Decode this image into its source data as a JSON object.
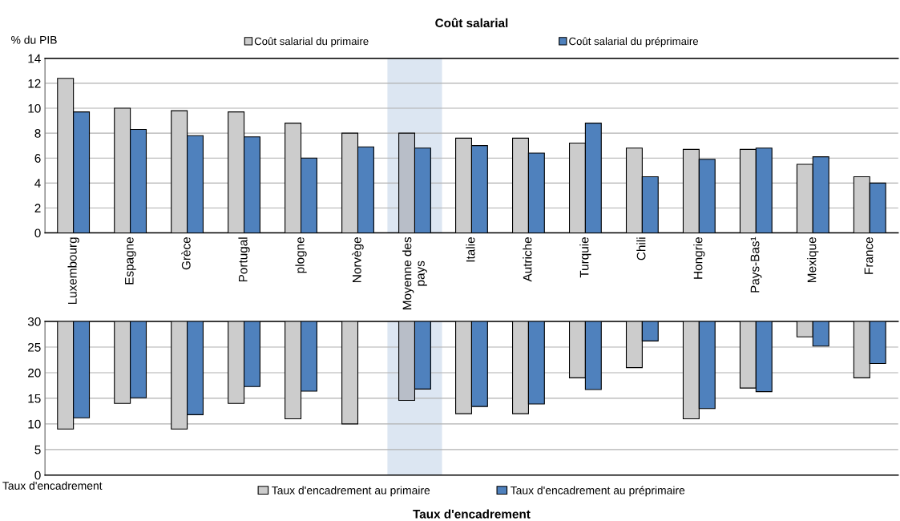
{
  "chart_data": [
    {
      "type": "bar",
      "title": "Coût salarial",
      "ylabel": "% du PIB",
      "legend": "top",
      "grid": "y",
      "categories": [
        "Luxembourg",
        "Espagne",
        "Grèce",
        "Portugal",
        "plogne",
        "Norvège",
        "Moyenne des pays",
        "Italie",
        "Autriche",
        "Turquie",
        "Chili",
        "Hongrie",
        "Pays-Bas¹",
        "Mexique",
        "France"
      ],
      "ylim": [
        0,
        14
      ],
      "yticks": [
        0,
        2,
        4,
        6,
        8,
        10,
        12,
        14
      ],
      "bands": [
        {
          "axis": "x",
          "from": "Moyenne des pays",
          "to": "Moyenne des pays",
          "color": "#dce6f2"
        }
      ],
      "series": [
        {
          "name": "Coût salarial du primaire",
          "color": "#cccccc",
          "colors": [
            "#cccccc",
            "#cccccc",
            "#cccccc",
            "#cccccc",
            "#cccccc",
            "#cccccc",
            "#b8bec8",
            "#cccccc",
            "#cccccc",
            "#cccccc",
            "#cccccc",
            "#cccccc",
            "#cccccc",
            "#cccccc",
            "#cccccc"
          ],
          "values": [
            12.4,
            10.0,
            9.8,
            9.7,
            8.8,
            8.0,
            8.0,
            7.6,
            7.6,
            7.2,
            6.8,
            6.7,
            6.7,
            5.5,
            4.5
          ]
        },
        {
          "name": "Coût salarial du préprimaire",
          "color": "#4f81bd",
          "values": [
            9.7,
            8.3,
            7.8,
            7.7,
            6.0,
            6.9,
            6.8,
            7.0,
            6.4,
            8.8,
            4.5,
            5.9,
            6.8,
            6.1,
            4.0
          ]
        }
      ]
    },
    {
      "type": "bar",
      "title": "Taux d'encadrement",
      "ylabel": "Taux d'encadrement",
      "legend": "bottom",
      "grid": "y",
      "tick_labels": "y",
      "categories": [
        "Luxembourg",
        "Espagne",
        "Grèce",
        "Portugal",
        "plogne",
        "Norvège",
        "Moyenne des pays",
        "Italie",
        "Autriche",
        "Turquie",
        "Chili",
        "Hongrie",
        "Pays-Bas¹",
        "Mexique",
        "France"
      ],
      "ylim": [
        0,
        30
      ],
      "yticks": [
        0,
        5,
        10,
        15,
        20,
        25,
        30
      ],
      "bands": [
        {
          "axis": "x",
          "from": "Moyenne des pays",
          "to": "Moyenne des pays",
          "color": "#dce6f2"
        }
      ],
      "series": [
        {
          "name": "Taux d'encadrement au primaire",
          "color": "#cccccc",
          "colors": [
            "#cccccc",
            "#cccccc",
            "#cccccc",
            "#cccccc",
            "#cccccc",
            "#cccccc",
            "#b8bec8",
            "#cccccc",
            "#cccccc",
            "#cccccc",
            "#cccccc",
            "#cccccc",
            "#cccccc",
            "#cccccc",
            "#cccccc"
          ],
          "base": [
            30,
            30,
            30,
            30,
            30,
            30,
            30,
            30,
            30,
            30,
            30,
            30,
            30,
            30,
            30
          ],
          "values": [
            -21,
            -16,
            -21,
            -16,
            -19,
            -20,
            -15.4,
            -18,
            -18,
            -11,
            -9,
            -19,
            -13,
            -3,
            -11
          ]
        },
        {
          "name": "Taux d'encadrement au préprimaire",
          "color": "#4f81bd",
          "base": [
            30,
            30,
            30,
            30,
            30,
            null,
            30,
            30,
            30,
            30,
            30,
            30,
            30,
            30,
            30
          ],
          "values": [
            -18.8,
            -14.9,
            -18.2,
            -12.7,
            -13.6,
            null,
            -13.2,
            -16.6,
            -16.1,
            -13.3,
            -3.8,
            -17,
            -13.7,
            -4.8,
            -8.2
          ]
        }
      ]
    }
  ]
}
